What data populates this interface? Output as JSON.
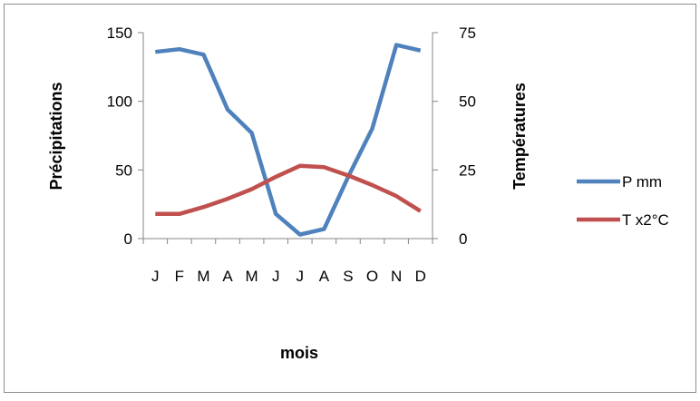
{
  "chart_data": {
    "type": "line",
    "title": "",
    "xlabel": "mois",
    "ylabel": "Précipitations",
    "y2label": "Températures",
    "categories": [
      "J",
      "F",
      "M",
      "A",
      "M",
      "J",
      "J",
      "A",
      "S",
      "O",
      "N",
      "D"
    ],
    "ylim": [
      0,
      150
    ],
    "y2lim": [
      0,
      75
    ],
    "yticks": [
      "0",
      "50",
      "100",
      "150"
    ],
    "y2ticks": [
      "0",
      "25",
      "50",
      "75"
    ],
    "grid": false,
    "legend_position": "right",
    "series": [
      {
        "name": "P mm",
        "axis": "left",
        "color": "#4F81BD",
        "values": [
          136,
          138,
          134,
          94,
          77,
          18,
          3,
          7,
          45,
          80,
          141,
          137
        ]
      },
      {
        "name": "T x2°C",
        "axis": "left",
        "color": "#C0504D",
        "values": [
          18,
          18,
          23,
          29,
          36,
          45,
          53,
          52,
          46,
          39,
          31,
          20
        ]
      }
    ]
  }
}
